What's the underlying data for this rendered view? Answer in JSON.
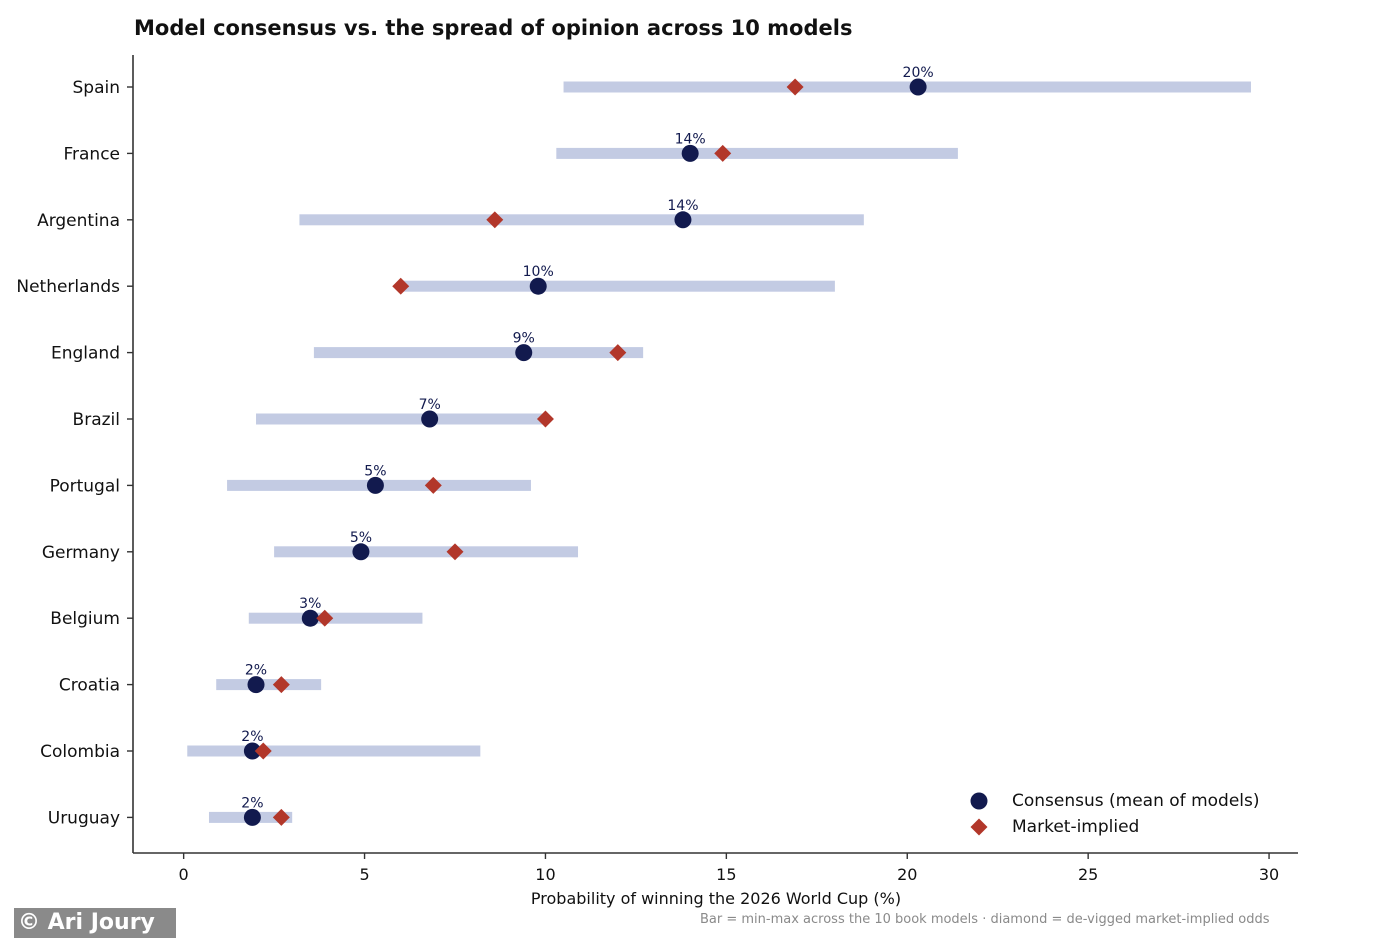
{
  "chart_data": {
    "type": "dot-range",
    "title": "Model consensus vs. the spread of opinion across 10 models",
    "xlabel": "Probability of winning the 2026 World Cup (%)",
    "ylabel": "",
    "xlim": [
      -1.4,
      30.8
    ],
    "xticks": [
      0,
      5,
      10,
      15,
      20,
      25,
      30
    ],
    "grid": false,
    "legend_position": "bottom-right",
    "colors": {
      "range": "#c3cbe3",
      "consensus": "#121a4e",
      "market": "#b2372a"
    },
    "series": [
      {
        "name": "Consensus (mean of models)",
        "marker": "circle"
      },
      {
        "name": "Market-implied",
        "marker": "diamond"
      }
    ],
    "countries": [
      {
        "name": "Spain",
        "min": 10.5,
        "max": 29.5,
        "consensus": 20.3,
        "market": 16.9,
        "label": "20%"
      },
      {
        "name": "France",
        "min": 10.3,
        "max": 21.4,
        "consensus": 14.0,
        "market": 14.9,
        "label": "14%"
      },
      {
        "name": "Argentina",
        "min": 3.2,
        "max": 18.8,
        "consensus": 13.8,
        "market": 8.6,
        "label": "14%"
      },
      {
        "name": "Netherlands",
        "min": 6.0,
        "max": 18.0,
        "consensus": 9.8,
        "market": 6.0,
        "label": "10%"
      },
      {
        "name": "England",
        "min": 3.6,
        "max": 12.7,
        "consensus": 9.4,
        "market": 12.0,
        "label": "9%"
      },
      {
        "name": "Brazil",
        "min": 2.0,
        "max": 10.0,
        "consensus": 6.8,
        "market": 10.0,
        "label": "7%"
      },
      {
        "name": "Portugal",
        "min": 1.2,
        "max": 9.6,
        "consensus": 5.3,
        "market": 6.9,
        "label": "5%"
      },
      {
        "name": "Germany",
        "min": 2.5,
        "max": 10.9,
        "consensus": 4.9,
        "market": 7.5,
        "label": "5%"
      },
      {
        "name": "Belgium",
        "min": 1.8,
        "max": 6.6,
        "consensus": 3.5,
        "market": 3.9,
        "label": "3%"
      },
      {
        "name": "Croatia",
        "min": 0.9,
        "max": 3.8,
        "consensus": 2.0,
        "market": 2.7,
        "label": "2%"
      },
      {
        "name": "Colombia",
        "min": 0.1,
        "max": 8.2,
        "consensus": 1.9,
        "market": 2.2,
        "label": "2%"
      },
      {
        "name": "Uruguay",
        "min": 0.7,
        "max": 3.0,
        "consensus": 1.9,
        "market": 2.7,
        "label": "2%"
      }
    ]
  },
  "credit": "© Ari Joury",
  "footnote": "Bar = min-max across the 10 book models · diamond = de-vigged market-implied odds"
}
